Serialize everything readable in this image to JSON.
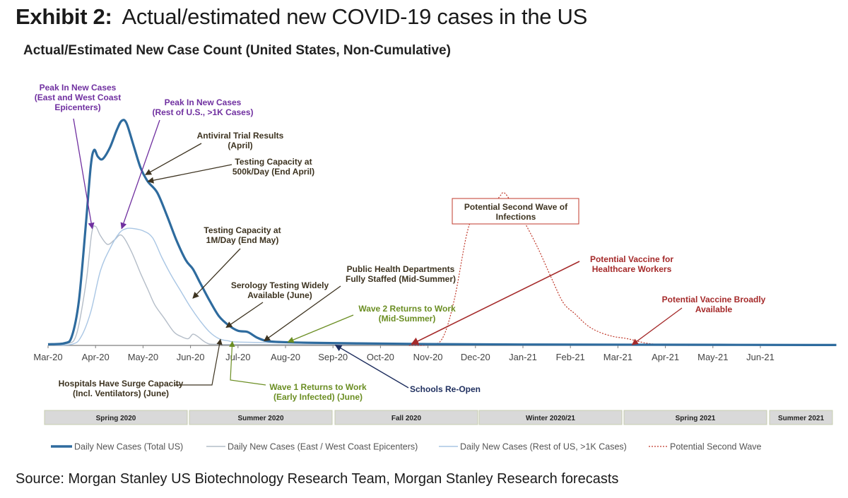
{
  "header": {
    "exhibit_label": "Exhibit 2:",
    "exhibit_title": "Actual/estimated new COVID-19 cases in the US"
  },
  "footer": {
    "source": "Source: Morgan Stanley US Biotechnology Research Team, Morgan Stanley Research forecasts"
  },
  "colors": {
    "total": "#2e6b9e",
    "east_west": "#b4bdc8",
    "rest_us": "#a9c6e4",
    "second_wave": "#c0392b",
    "axis": "#7f7f7f",
    "annotation_purple": "#7030a0",
    "annotation_dark": "#3d3320",
    "annotation_green": "#6b8e23",
    "annotation_navy": "#1f2f5f",
    "annotation_red": "#a52a2a",
    "season_fill": "#d9d9d9"
  },
  "chart_data": {
    "type": "line",
    "title": "Actual/Estimated New Case Count (United States, Non-Cumulative)",
    "xlabel": "",
    "ylabel": "",
    "x_unit": "month offset from Mar-20",
    "x_ticks": [
      "Mar-20",
      "Apr-20",
      "May-20",
      "Jun-20",
      "Jul-20",
      "Aug-20",
      "Sep-20",
      "Oct-20",
      "Nov-20",
      "Dec-20",
      "Jan-21",
      "Feb-21",
      "Mar-21",
      "Apr-21",
      "May-21",
      "Jun-21"
    ],
    "xlim": [
      0,
      16.6
    ],
    "ylim": [
      0,
      100
    ],
    "grid": false,
    "legend_position": "bottom",
    "series": [
      {
        "name": "Daily New Cases (Total US)",
        "style": "thick-solid",
        "points": [
          [
            0,
            0.5
          ],
          [
            0.35,
            1
          ],
          [
            0.5,
            4
          ],
          [
            0.65,
            20
          ],
          [
            0.8,
            55
          ],
          [
            0.9,
            80
          ],
          [
            0.97,
            87
          ],
          [
            1.05,
            84
          ],
          [
            1.15,
            83
          ],
          [
            1.3,
            88
          ],
          [
            1.45,
            96
          ],
          [
            1.55,
            100
          ],
          [
            1.65,
            99
          ],
          [
            1.8,
            89
          ],
          [
            1.95,
            79
          ],
          [
            2.1,
            73
          ],
          [
            2.3,
            68
          ],
          [
            2.5,
            58
          ],
          [
            2.7,
            47
          ],
          [
            2.9,
            38
          ],
          [
            3.05,
            34
          ],
          [
            3.2,
            28
          ],
          [
            3.4,
            20
          ],
          [
            3.6,
            13
          ],
          [
            3.8,
            9
          ],
          [
            4.0,
            6.5
          ],
          [
            4.2,
            6
          ],
          [
            4.4,
            3.5
          ],
          [
            4.6,
            2
          ],
          [
            4.9,
            1.5
          ],
          [
            5.5,
            1.2
          ],
          [
            6.5,
            0.9
          ],
          [
            8.0,
            0.6
          ],
          [
            10.0,
            0.4
          ],
          [
            13.0,
            0.3
          ],
          [
            16.6,
            0.2
          ]
        ]
      },
      {
        "name": "Daily New Cases (East / West Coast Epicenters)",
        "style": "thin-solid",
        "points": [
          [
            0,
            0.3
          ],
          [
            0.4,
            0.8
          ],
          [
            0.6,
            5
          ],
          [
            0.8,
            28
          ],
          [
            0.92,
            50
          ],
          [
            1.0,
            53
          ],
          [
            1.1,
            49
          ],
          [
            1.25,
            45
          ],
          [
            1.4,
            47
          ],
          [
            1.55,
            49
          ],
          [
            1.75,
            42
          ],
          [
            1.95,
            32
          ],
          [
            2.1,
            25
          ],
          [
            2.25,
            18
          ],
          [
            2.45,
            12
          ],
          [
            2.65,
            6
          ],
          [
            2.8,
            4
          ],
          [
            2.95,
            3
          ],
          [
            3.05,
            5
          ],
          [
            3.15,
            4
          ],
          [
            3.35,
            1
          ],
          [
            3.6,
            0.5
          ],
          [
            5,
            0.4
          ],
          [
            16.6,
            0.2
          ]
        ]
      },
      {
        "name": "Daily New Cases (Rest of US, >1K Cases)",
        "style": "thin-solid",
        "points": [
          [
            0,
            0.2
          ],
          [
            0.5,
            0.5
          ],
          [
            0.7,
            4
          ],
          [
            0.9,
            15
          ],
          [
            1.1,
            33
          ],
          [
            1.3,
            43
          ],
          [
            1.5,
            50
          ],
          [
            1.65,
            52
          ],
          [
            1.8,
            52
          ],
          [
            2.0,
            51
          ],
          [
            2.2,
            48
          ],
          [
            2.4,
            39
          ],
          [
            2.6,
            31
          ],
          [
            2.8,
            24
          ],
          [
            3.0,
            17
          ],
          [
            3.2,
            11
          ],
          [
            3.4,
            6
          ],
          [
            3.6,
            3
          ],
          [
            3.8,
            2
          ],
          [
            4.0,
            1.5
          ],
          [
            5,
            1.2
          ],
          [
            7,
            0.6
          ],
          [
            16.6,
            0.2
          ]
        ]
      },
      {
        "name": "Potential Second Wave",
        "style": "dotted",
        "points": [
          [
            7.6,
            0
          ],
          [
            8.0,
            0.3
          ],
          [
            8.3,
            3
          ],
          [
            8.55,
            20
          ],
          [
            8.8,
            48
          ],
          [
            8.95,
            58
          ],
          [
            9.05,
            61
          ],
          [
            9.15,
            59
          ],
          [
            9.3,
            61
          ],
          [
            9.5,
            66
          ],
          [
            9.6,
            68
          ],
          [
            9.75,
            64
          ],
          [
            10.0,
            56
          ],
          [
            10.3,
            44
          ],
          [
            10.6,
            30
          ],
          [
            10.85,
            19
          ],
          [
            11.1,
            14
          ],
          [
            11.35,
            9
          ],
          [
            11.6,
            6
          ],
          [
            11.9,
            4
          ],
          [
            12.2,
            3
          ],
          [
            12.6,
            1
          ],
          [
            13.0,
            0.3
          ],
          [
            13.5,
            0
          ]
        ]
      }
    ],
    "annotations": [
      {
        "id": "peak-east-west",
        "text": [
          "Peak In New Cases",
          "(East and West Coast",
          "Epicenters)"
        ],
        "color": "purple",
        "target": [
          0.93,
          52
        ]
      },
      {
        "id": "peak-rest",
        "text": [
          "Peak In New Cases",
          "(Rest of U.S., >1K Cases)"
        ],
        "color": "purple",
        "target": [
          1.55,
          52
        ]
      },
      {
        "id": "antiviral",
        "text": [
          "Antiviral Trial Results",
          "(April)"
        ],
        "color": "dark",
        "target": [
          2.05,
          76
        ]
      },
      {
        "id": "testing-500k",
        "text": [
          "Testing Capacity at",
          "500k/Day (End April)"
        ],
        "color": "dark",
        "target": [
          2.1,
          73
        ]
      },
      {
        "id": "testing-1m",
        "text": [
          "Testing Capacity at",
          "1M/Day (End May)"
        ],
        "color": "dark",
        "target": [
          3.05,
          21
        ]
      },
      {
        "id": "serology",
        "text": [
          "Serology Testing Widely",
          "Available (June)"
        ],
        "color": "dark",
        "target": [
          3.75,
          8
        ]
      },
      {
        "id": "public-health",
        "text": [
          "Public Health Departments",
          "Fully Staffed (Mid-Summer)"
        ],
        "color": "dark",
        "target": [
          4.55,
          2
        ]
      },
      {
        "id": "wave2",
        "text": [
          "Wave 2 Returns to Work",
          "(Mid-Summer)"
        ],
        "color": "green",
        "target": [
          5.05,
          1.5
        ]
      },
      {
        "id": "second-wave-box",
        "text": [
          "Potential Second Wave of",
          "Infections"
        ],
        "color": "dark",
        "target": null
      },
      {
        "id": "vaccine-healthcare",
        "text": [
          "Potential Vaccine for",
          "Healthcare Workers"
        ],
        "color": "red",
        "target": [
          7.65,
          0.5
        ]
      },
      {
        "id": "vaccine-broadly",
        "text": [
          "Potential Vaccine Broadly",
          "Available"
        ],
        "color": "red",
        "target": [
          12.3,
          0.3
        ]
      },
      {
        "id": "hospitals",
        "text": [
          "Hospitals Have Surge Capacity",
          "(Incl. Ventilators) (June)"
        ],
        "color": "dark",
        "target": [
          3.63,
          4
        ]
      },
      {
        "id": "wave1",
        "text": [
          "Wave 1 Returns to Work",
          "(Early Infected) (June)"
        ],
        "color": "green",
        "target": [
          3.88,
          3
        ]
      },
      {
        "id": "schools",
        "text": [
          "Schools Re-Open"
        ],
        "color": "navy",
        "target": [
          6.05,
          0.8
        ]
      }
    ],
    "seasons": [
      "Spring 2020",
      "Summer 2020",
      "Fall 2020",
      "Winter 2020/21",
      "Spring 2021",
      "Summer 2021"
    ]
  }
}
